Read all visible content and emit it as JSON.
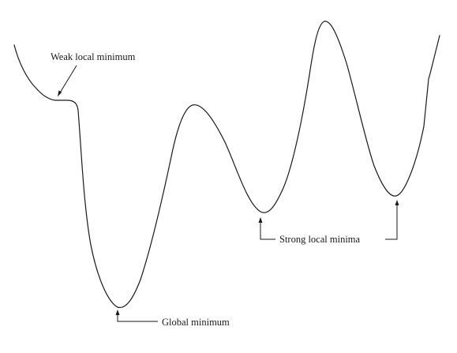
{
  "annotations": {
    "weak_local_minimum": "Weak local minimum",
    "global_minimum": "Global minimum",
    "strong_local_minima": "Strong local minima"
  },
  "colors": {
    "curve": "#1a1a1a",
    "background": "#ffffff"
  }
}
